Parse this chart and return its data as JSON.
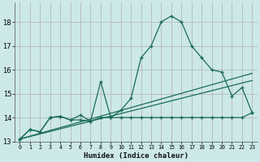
{
  "xlabel": "Humidex (Indice chaleur)",
  "bg_color": "#cce8e8",
  "grid_color": "#b8b8b8",
  "line_color": "#1a6b5a",
  "xlim": [
    -0.5,
    23.5
  ],
  "ylim": [
    13.0,
    18.8
  ],
  "yticks": [
    13,
    14,
    15,
    16,
    17,
    18
  ],
  "xticks": [
    0,
    1,
    2,
    3,
    4,
    5,
    6,
    7,
    8,
    9,
    10,
    11,
    12,
    13,
    14,
    15,
    16,
    17,
    18,
    19,
    20,
    21,
    22,
    23
  ],
  "series_main_x": [
    0,
    1,
    2,
    3,
    4,
    5,
    6,
    7,
    8,
    9,
    10,
    11,
    12,
    13,
    14,
    15,
    16,
    17,
    18,
    19,
    20,
    21,
    22,
    23
  ],
  "series_main_y": [
    13.1,
    13.5,
    13.4,
    14.0,
    14.05,
    13.9,
    14.1,
    13.85,
    15.5,
    14.0,
    14.3,
    14.8,
    16.5,
    17.0,
    18.0,
    18.25,
    18.0,
    17.0,
    16.5,
    16.0,
    15.9,
    14.9,
    15.25,
    14.2
  ],
  "series_flat_x": [
    0,
    1,
    2,
    3,
    4,
    5,
    6,
    7,
    8,
    9,
    10,
    11,
    12,
    13,
    14,
    15,
    16,
    17,
    18,
    19,
    20,
    21,
    22,
    23
  ],
  "series_flat_y": [
    13.1,
    13.5,
    13.4,
    14.0,
    14.05,
    13.9,
    13.9,
    13.85,
    14.0,
    14.0,
    14.0,
    14.0,
    14.0,
    14.0,
    14.0,
    14.0,
    14.0,
    14.0,
    14.0,
    14.0,
    14.0,
    14.0,
    14.0,
    14.2
  ],
  "trend1_x": [
    0,
    23
  ],
  "trend1_y": [
    13.1,
    15.55
  ],
  "trend2_x": [
    0,
    23
  ],
  "trend2_y": [
    13.1,
    15.85
  ]
}
